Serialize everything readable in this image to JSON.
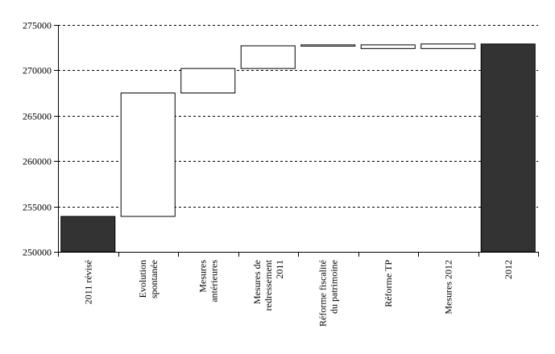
{
  "chart_data": {
    "type": "bar",
    "subtype": "waterfall",
    "title": "",
    "xlabel": "",
    "ylabel": "",
    "ylim": [
      250000,
      275000
    ],
    "y_ticks": [
      250000,
      255000,
      260000,
      265000,
      270000,
      275000
    ],
    "y_tick_labels": [
      "250000",
      "255000",
      "260000",
      "265000",
      "270000",
      "275000"
    ],
    "grid": "horizontal dashed",
    "categories": [
      [
        "2011 révisé"
      ],
      [
        "Evolution",
        "spontanée"
      ],
      [
        "Mesures",
        "antérieures"
      ],
      [
        "Mesures de",
        "redressement",
        "2011"
      ],
      [
        "Réforme fiscalité",
        "du patrimoine"
      ],
      [
        "Réforme TP"
      ],
      [
        "Mesures 2012"
      ],
      [
        "2012"
      ]
    ],
    "bars": [
      {
        "kind": "total",
        "start": 250000,
        "end": 253900
      },
      {
        "kind": "step",
        "start": 253900,
        "end": 267500
      },
      {
        "kind": "step",
        "start": 267500,
        "end": 270200
      },
      {
        "kind": "step",
        "start": 270200,
        "end": 272700
      },
      {
        "kind": "step",
        "start": 272700,
        "end": 272800
      },
      {
        "kind": "step",
        "start": 272800,
        "end": 272400
      },
      {
        "kind": "step",
        "start": 272400,
        "end": 272900
      },
      {
        "kind": "total",
        "start": 250000,
        "end": 272900
      }
    ],
    "colors": {
      "total": "#333333",
      "step": "#ffffff",
      "stroke": "#000000"
    }
  }
}
